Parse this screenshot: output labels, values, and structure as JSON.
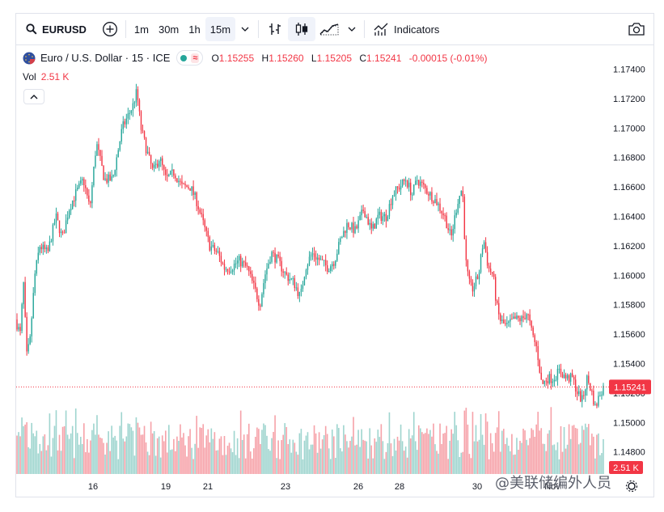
{
  "toolbar": {
    "symbol": "EURUSD",
    "intervals": [
      "1m",
      "30m",
      "1h",
      "15m"
    ],
    "active_interval": "15m",
    "indicators_label": "Indicators"
  },
  "legend": {
    "title": "Euro / U.S. Dollar · 15 · ICE",
    "open_label": "O",
    "open": "1.15255",
    "high_label": "H",
    "high": "1.15260",
    "low_label": "L",
    "low": "1.15205",
    "close_label": "C",
    "close": "1.15241",
    "change": "-0.00015 (-0.01%)"
  },
  "volume_legend": {
    "label": "Vol",
    "value": "2.51 K"
  },
  "colors": {
    "up": "#26a69a",
    "down": "#f23645",
    "up_volume": "#9fd5cf",
    "down_volume": "#f6a2a9",
    "price_line": "#f23645"
  },
  "watermark": "@美联储编外人员",
  "chart_data": {
    "type": "candlestick",
    "symbol": "EURUSD",
    "interval": "15",
    "y_axis": {
      "ticks": [
        "1.14800",
        "1.15000",
        "1.15200",
        "1.15400",
        "1.15600",
        "1.15800",
        "1.16000",
        "1.16200",
        "1.16400",
        "1.16600",
        "1.16800",
        "1.17000",
        "1.17200",
        "1.17400"
      ],
      "range": [
        1.1465,
        1.1754
      ]
    },
    "x_axis": {
      "ticks": [
        "16",
        "19",
        "21",
        "23",
        "26",
        "28",
        "30",
        "Nov"
      ]
    },
    "last_price": 1.15241,
    "last_price_label": "1.15241",
    "volume_last_label": "2.51 K",
    "price_path": [
      [
        0,
        1.157
      ],
      [
        6,
        1.156
      ],
      [
        10,
        1.1595
      ],
      [
        14,
        1.1545
      ],
      [
        18,
        1.1555
      ],
      [
        24,
        1.16
      ],
      [
        30,
        1.162
      ],
      [
        40,
        1.1615
      ],
      [
        50,
        1.164
      ],
      [
        58,
        1.1625
      ],
      [
        66,
        1.1645
      ],
      [
        74,
        1.1655
      ],
      [
        84,
        1.1665
      ],
      [
        92,
        1.1645
      ],
      [
        100,
        1.169
      ],
      [
        110,
        1.1665
      ],
      [
        120,
        1.1665
      ],
      [
        132,
        1.17
      ],
      [
        145,
        1.1715
      ],
      [
        150,
        1.1725
      ],
      [
        155,
        1.17
      ],
      [
        162,
        1.1685
      ],
      [
        170,
        1.167
      ],
      [
        178,
        1.168
      ],
      [
        186,
        1.1665
      ],
      [
        196,
        1.167
      ],
      [
        206,
        1.166
      ],
      [
        216,
        1.166
      ],
      [
        224,
        1.165
      ],
      [
        232,
        1.1635
      ],
      [
        240,
        1.162
      ],
      [
        250,
        1.1615
      ],
      [
        258,
        1.1605
      ],
      [
        266,
        1.1605
      ],
      [
        276,
        1.161
      ],
      [
        286,
        1.1605
      ],
      [
        296,
        1.159
      ],
      [
        302,
        1.158
      ],
      [
        308,
        1.16
      ],
      [
        316,
        1.1615
      ],
      [
        324,
        1.161
      ],
      [
        334,
        1.16
      ],
      [
        344,
        1.1595
      ],
      [
        352,
        1.1585
      ],
      [
        358,
        1.1605
      ],
      [
        366,
        1.1615
      ],
      [
        376,
        1.161
      ],
      [
        386,
        1.1605
      ],
      [
        394,
        1.161
      ],
      [
        402,
        1.1625
      ],
      [
        410,
        1.1635
      ],
      [
        420,
        1.163
      ],
      [
        430,
        1.1645
      ],
      [
        440,
        1.163
      ],
      [
        448,
        1.164
      ],
      [
        458,
        1.164
      ],
      [
        466,
        1.1655
      ],
      [
        474,
        1.166
      ],
      [
        482,
        1.1665
      ],
      [
        490,
        1.1655
      ],
      [
        496,
        1.1665
      ],
      [
        504,
        1.166
      ],
      [
        512,
        1.1655
      ],
      [
        520,
        1.165
      ],
      [
        530,
        1.164
      ],
      [
        538,
        1.1625
      ],
      [
        546,
        1.165
      ],
      [
        552,
        1.166
      ],
      [
        556,
        1.161
      ],
      [
        560,
        1.1595
      ],
      [
        564,
        1.159
      ],
      [
        572,
        1.16
      ],
      [
        578,
        1.1625
      ],
      [
        584,
        1.1605
      ],
      [
        590,
        1.16
      ],
      [
        594,
        1.158
      ],
      [
        598,
        1.157
      ],
      [
        606,
        1.1565
      ],
      [
        616,
        1.157
      ],
      [
        626,
        1.157
      ],
      [
        632,
        1.1575
      ],
      [
        638,
        1.156
      ],
      [
        644,
        1.155
      ],
      [
        650,
        1.1525
      ],
      [
        656,
        1.153
      ],
      [
        664,
        1.153
      ],
      [
        672,
        1.1535
      ],
      [
        680,
        1.153
      ],
      [
        688,
        1.153
      ],
      [
        694,
        1.152
      ],
      [
        700,
        1.1515
      ],
      [
        706,
        1.153
      ],
      [
        712,
        1.152
      ],
      [
        716,
        1.151
      ],
      [
        722,
        1.152
      ],
      [
        726,
        1.15241
      ]
    ]
  }
}
